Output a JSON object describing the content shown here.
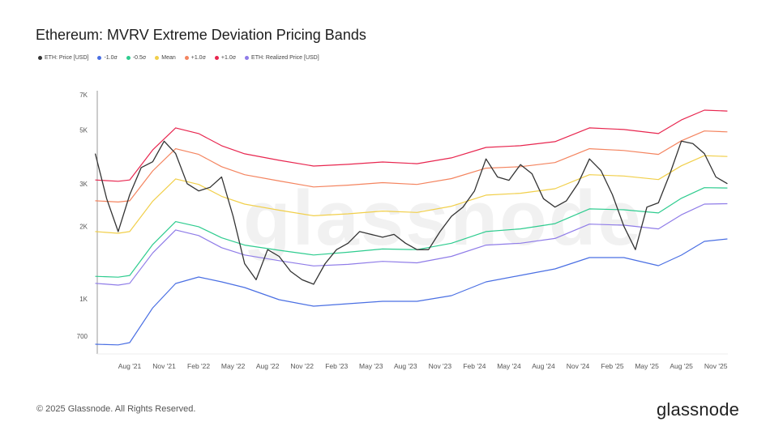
{
  "title": "Ethereum: MVRV Extreme Deviation Pricing Bands",
  "footer": "© 2025 Glassnode. All Rights Reserved.",
  "logo": "glassnode",
  "watermark": "glassnode",
  "chart_data": {
    "type": "line",
    "title": "Ethereum: MVRV Extreme Deviation Pricing Bands",
    "xlabel": "",
    "ylabel": "",
    "yscale": "log",
    "ylim": [
      620,
      7000
    ],
    "grid": false,
    "legend_position": "top-left",
    "y_ticks": [
      {
        "v": 700,
        "label": "700"
      },
      {
        "v": 1000,
        "label": "1K"
      },
      {
        "v": 2000,
        "label": "2K"
      },
      {
        "v": 3000,
        "label": "3K"
      },
      {
        "v": 5000,
        "label": "5K"
      },
      {
        "v": 7000,
        "label": "7K"
      }
    ],
    "x_ticks": [
      {
        "d": "2021-08",
        "label": "Aug '21"
      },
      {
        "d": "2021-11",
        "label": "Nov '21"
      },
      {
        "d": "2022-02",
        "label": "Feb '22"
      },
      {
        "d": "2022-05",
        "label": "May '22"
      },
      {
        "d": "2022-08",
        "label": "Aug '22"
      },
      {
        "d": "2022-11",
        "label": "Nov '22"
      },
      {
        "d": "2023-02",
        "label": "Feb '23"
      },
      {
        "d": "2023-05",
        "label": "May '23"
      },
      {
        "d": "2023-08",
        "label": "Aug '23"
      },
      {
        "d": "2023-11",
        "label": "Nov '23"
      },
      {
        "d": "2024-02",
        "label": "Feb '24"
      },
      {
        "d": "2024-05",
        "label": "May '24"
      },
      {
        "d": "2024-08",
        "label": "Aug '24"
      },
      {
        "d": "2024-11",
        "label": "Nov '24"
      },
      {
        "d": "2025-02",
        "label": "Feb '25"
      },
      {
        "d": "2025-05",
        "label": "May '25"
      },
      {
        "d": "2025-08",
        "label": "Aug '25"
      },
      {
        "d": "2025-11",
        "label": "Nov '25"
      }
    ],
    "band_dates": [
      "2021-05",
      "2021-07",
      "2021-08",
      "2021-10",
      "2021-12",
      "2022-02",
      "2022-04",
      "2022-06",
      "2022-09",
      "2022-12",
      "2023-03",
      "2023-06",
      "2023-09",
      "2023-12",
      "2024-03",
      "2024-06",
      "2024-09",
      "2024-12",
      "2025-03",
      "2025-06",
      "2025-08",
      "2025-10",
      "2025-12"
    ],
    "price_dates": [
      "2021-05",
      "2021-06",
      "2021-07",
      "2021-08",
      "2021-09",
      "2021-10",
      "2021-11",
      "2021-12",
      "2022-01",
      "2022-02",
      "2022-03",
      "2022-04",
      "2022-05",
      "2022-06",
      "2022-07",
      "2022-08",
      "2022-09",
      "2022-10",
      "2022-11",
      "2022-12",
      "2023-01",
      "2023-02",
      "2023-03",
      "2023-04",
      "2023-05",
      "2023-06",
      "2023-07",
      "2023-08",
      "2023-09",
      "2023-10",
      "2023-11",
      "2023-12",
      "2024-01",
      "2024-02",
      "2024-03",
      "2024-04",
      "2024-05",
      "2024-06",
      "2024-07",
      "2024-08",
      "2024-09",
      "2024-10",
      "2024-11",
      "2024-12",
      "2025-01",
      "2025-02",
      "2025-03",
      "2025-04",
      "2025-05",
      "2025-06",
      "2025-07",
      "2025-08",
      "2025-09",
      "2025-10",
      "2025-11",
      "2025-12"
    ],
    "series": [
      {
        "name": "ETH: Price [USD]",
        "color": "#333333",
        "dates": "price_dates",
        "values": [
          4000,
          2600,
          1900,
          2700,
          3500,
          3700,
          4500,
          4000,
          3000,
          2800,
          2900,
          3200,
          2200,
          1400,
          1200,
          1600,
          1500,
          1300,
          1200,
          1150,
          1400,
          1600,
          1700,
          1900,
          1850,
          1800,
          1850,
          1700,
          1600,
          1600,
          1900,
          2200,
          2400,
          2800,
          3800,
          3200,
          3100,
          3600,
          3300,
          2600,
          2400,
          2550,
          3000,
          3800,
          3400,
          2700,
          2000,
          1600,
          2400,
          2500,
          3300,
          4500,
          4400,
          4000,
          3200,
          3000
        ]
      },
      {
        "name": "-1.0σ",
        "color": "#4a6fe3",
        "dates": "band_dates",
        "values": [
          649,
          645,
          659,
          918,
          1158,
          1232,
          1176,
          1114,
          992,
          933,
          955,
          977,
          977,
          1031,
          1176,
          1251,
          1331,
          1483,
          1483,
          1373,
          1518,
          1731,
          1771
        ]
      },
      {
        "name": "-0.5σ",
        "color": "#2ecc8f",
        "dates": "band_dates",
        "values": [
          1240,
          1230,
          1250,
          1680,
          2090,
          1990,
          1790,
          1670,
          1590,
          1520,
          1560,
          1610,
          1600,
          1700,
          1900,
          1950,
          2050,
          2360,
          2340,
          2270,
          2610,
          2890,
          2880
        ]
      },
      {
        "name": "Mean",
        "color": "#f1cf4a",
        "dates": "band_dates",
        "values": [
          1900,
          1870,
          1900,
          2540,
          3140,
          2980,
          2660,
          2470,
          2330,
          2210,
          2250,
          2310,
          2280,
          2420,
          2690,
          2740,
          2860,
          3270,
          3230,
          3120,
          3560,
          3920,
          3890
        ]
      },
      {
        "name": "+1.0σ",
        "color": "#f4845f",
        "dates": "band_dates",
        "values": [
          2550,
          2520,
          2550,
          3390,
          4190,
          3970,
          3530,
          3270,
          3080,
          2910,
          2960,
          3030,
          2980,
          3150,
          3480,
          3530,
          3670,
          4190,
          4120,
          3970,
          4520,
          4960,
          4920
        ]
      },
      {
        "name": "+1.0σ",
        "color": "#e8264f",
        "dates": "band_dates",
        "values": [
          3110,
          3070,
          3110,
          4140,
          5110,
          4840,
          4310,
          3990,
          3750,
          3550,
          3610,
          3690,
          3630,
          3840,
          4240,
          4310,
          4480,
          5110,
          5030,
          4840,
          5510,
          6050,
          6000
        ]
      },
      {
        "name": "ETH: Realized Price [USD]",
        "color": "#8f7ce8",
        "dates": "band_dates",
        "values": [
          1160,
          1140,
          1160,
          1550,
          1930,
          1830,
          1630,
          1520,
          1440,
          1370,
          1390,
          1430,
          1410,
          1500,
          1670,
          1700,
          1780,
          2040,
          2020,
          1950,
          2230,
          2470,
          2480
        ]
      }
    ]
  }
}
